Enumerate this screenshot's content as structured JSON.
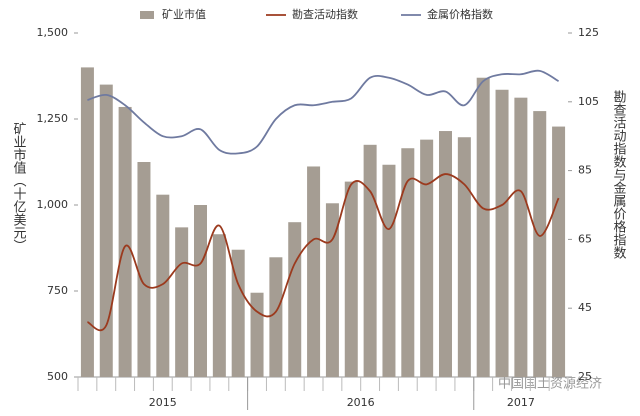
{
  "chart_data": {
    "type": "bar_line",
    "y_label": "矿业市值（十亿美元）",
    "y2_label": "勘查活动指数与金属价格指数",
    "watermark": "中国国土资源经济",
    "categories": [
      null,
      null,
      null,
      null,
      null,
      null,
      null,
      null,
      null,
      null,
      null,
      null,
      null,
      null,
      null,
      null,
      null,
      null,
      null,
      null,
      null,
      null,
      null,
      null,
      null,
      null
    ],
    "year_labels": [
      "2015",
      "2016",
      "2017"
    ],
    "year_spans": [
      9,
      12,
      5
    ],
    "ylim": [
      500,
      1500
    ],
    "yticks": [
      500,
      750,
      {
        "value": 1000,
        "label": "1,000"
      },
      {
        "value": 1250,
        "label": "1,250"
      },
      {
        "value": 1500,
        "label": "1,500"
      }
    ],
    "y2lim": [
      25,
      125
    ],
    "y2ticks": [
      25,
      45,
      65,
      85,
      105,
      125
    ],
    "series": [
      {
        "name": "矿业市值",
        "color": "#a59d93",
        "kind": "bar",
        "values": [
          1400,
          1350,
          1285,
          1125,
          1030,
          935,
          1000,
          915,
          870,
          745,
          848,
          950,
          1112,
          1005,
          1068,
          1175,
          1117,
          1165,
          1190,
          1215,
          1197,
          1370,
          1335,
          1312,
          1273,
          1228
        ]
      },
      {
        "name": "勘查活动指数",
        "color": "#9b3a1e",
        "kind": "line",
        "axis": "y2",
        "values": [
          41,
          40,
          63,
          52,
          52,
          58,
          58,
          69,
          52,
          44,
          44,
          58,
          65,
          65,
          81,
          79,
          68,
          82,
          81,
          84,
          81,
          74,
          75,
          79,
          66,
          77
        ]
      },
      {
        "name": "金属价格指数",
        "color": "#6f7aa0",
        "kind": "line",
        "axis": "y2",
        "values": [
          105.5,
          107,
          104,
          99,
          95,
          95,
          97,
          91,
          90,
          92,
          100,
          104,
          104,
          105,
          106,
          112,
          112,
          110,
          107,
          108,
          104,
          111,
          113,
          113,
          114,
          111
        ]
      }
    ]
  }
}
